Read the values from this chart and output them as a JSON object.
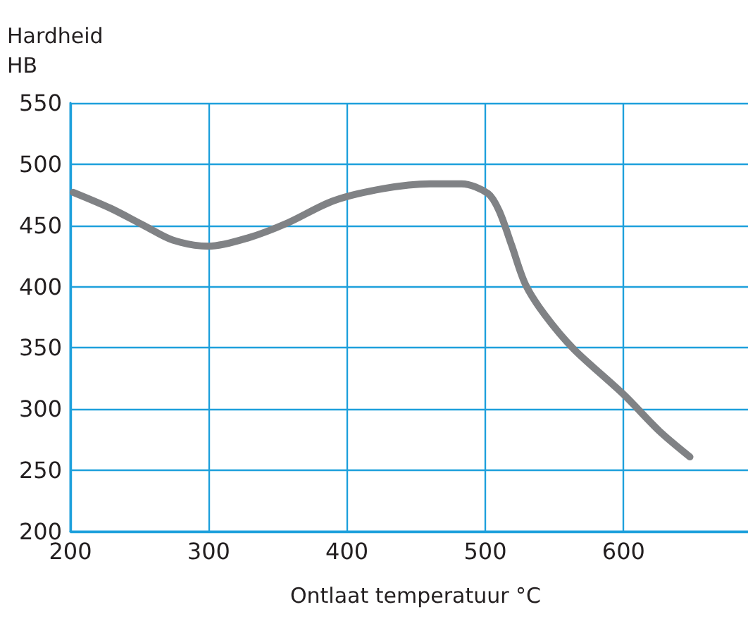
{
  "chart_data": {
    "type": "line",
    "title": "Hardheid",
    "ylabel": "HB",
    "xlabel": "Ontlaat temperatuur °C",
    "x": [
      202,
      229,
      253,
      274,
      300,
      329,
      357,
      390,
      426,
      460,
      483,
      502,
      510,
      519,
      529,
      543,
      564,
      600,
      626,
      648
    ],
    "series": [
      {
        "color": "#808285",
        "values": [
          477,
          464,
          450,
          438,
          433,
          440,
          452,
          470,
          480,
          484,
          484,
          476,
          462,
          434,
          402,
          377,
          349,
          312,
          282,
          261
        ]
      }
    ],
    "xlim": [
      200,
      690
    ],
    "xticks": [
      200,
      300,
      400,
      500,
      600
    ],
    "ylim": [
      200,
      550
    ],
    "yticks": [
      200,
      250,
      300,
      350,
      400,
      450,
      500,
      550
    ],
    "grid": true,
    "marker": "none",
    "line_style": "solid"
  }
}
